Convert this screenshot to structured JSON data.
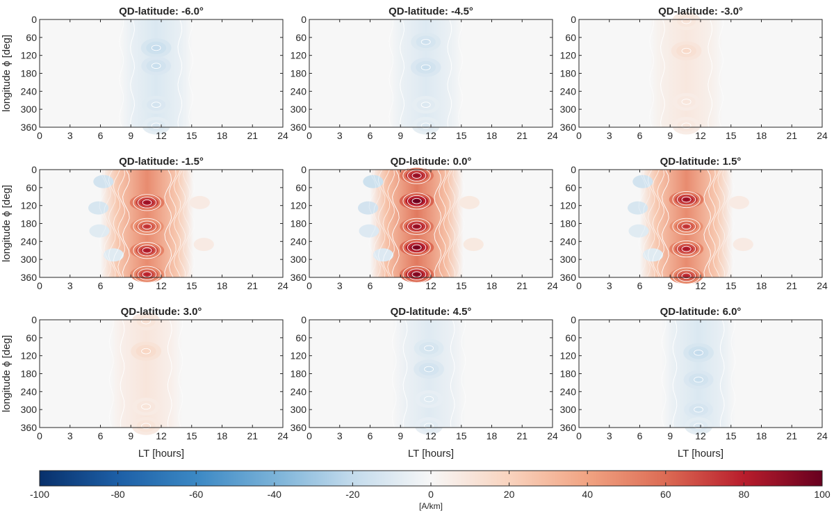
{
  "chart_data": {
    "type": "heatmap",
    "panel_layout": "3x3",
    "x_ticks": [
      "0",
      "3",
      "6",
      "9",
      "12",
      "15",
      "18",
      "21",
      "24"
    ],
    "y_ticks": [
      "0",
      "60",
      "120",
      "180",
      "240",
      "300",
      "360"
    ],
    "xlim": [
      0,
      24
    ],
    "ylim": [
      0,
      360
    ],
    "y_reversed": true,
    "xlabel": "LT [hours]",
    "ylabel": "longitude ϕ [deg]",
    "panels": [
      {
        "title": "QD-latitude: -6.0°",
        "amplitude": -20,
        "centre_lt": 11.5,
        "peaks_deg": [
          95,
          155,
          285,
          355
        ],
        "peak_weights": [
          1.0,
          0.9,
          0.7,
          0.6
        ]
      },
      {
        "title": "QD-latitude: -4.5°",
        "amplitude": -18,
        "centre_lt": 11.5,
        "peaks_deg": [
          75,
          160,
          285,
          355
        ],
        "peak_weights": [
          0.9,
          1.0,
          0.6,
          0.6
        ]
      },
      {
        "title": "QD-latitude: -3.0°",
        "amplitude": 16,
        "centre_lt": 10.6,
        "peaks_deg": [
          5,
          105,
          275,
          355
        ],
        "peak_weights": [
          0.7,
          1.0,
          0.6,
          0.6
        ]
      },
      {
        "title": "QD-latitude: -1.5°",
        "amplitude": 88,
        "centre_lt": 10.6,
        "peaks_deg": [
          110,
          190,
          270,
          350
        ],
        "peak_weights": [
          1.0,
          0.85,
          0.95,
          0.9
        ]
      },
      {
        "title": "QD-latitude: 0.0°",
        "amplitude": 100,
        "centre_lt": 10.6,
        "peaks_deg": [
          20,
          105,
          190,
          260,
          350
        ],
        "peak_weights": [
          0.9,
          1.0,
          0.9,
          0.97,
          0.95
        ]
      },
      {
        "title": "QD-latitude: 1.5°",
        "amplitude": 88,
        "centre_lt": 10.6,
        "peaks_deg": [
          100,
          190,
          265,
          355
        ],
        "peak_weights": [
          1.0,
          0.85,
          0.95,
          0.9
        ]
      },
      {
        "title": "QD-latitude: 3.0°",
        "amplitude": 18,
        "centre_lt": 10.5,
        "peaks_deg": [
          5,
          105,
          290,
          355
        ],
        "peak_weights": [
          0.7,
          1.0,
          0.6,
          0.7
        ]
      },
      {
        "title": "QD-latitude: 4.5°",
        "amplitude": -17,
        "centre_lt": 11.8,
        "peaks_deg": [
          95,
          165,
          265,
          355
        ],
        "peak_weights": [
          0.9,
          1.0,
          0.6,
          0.6
        ]
      },
      {
        "title": "QD-latitude: 6.0°",
        "amplitude": -20,
        "centre_lt": 11.8,
        "peaks_deg": [
          110,
          200,
          300,
          355
        ],
        "peak_weights": [
          1.0,
          0.9,
          0.8,
          0.6
        ]
      }
    ],
    "colorbar": {
      "ticks": [
        "-100",
        "-80",
        "-60",
        "-40",
        "-20",
        "0",
        "20",
        "40",
        "60",
        "80",
        "100"
      ],
      "range": [
        -100,
        100
      ],
      "label": "[A/km]",
      "colormap": "diverging blue-white-red",
      "stops": [
        {
          "v": -100,
          "c": "#08306b"
        },
        {
          "v": -80,
          "c": "#1d5fa6"
        },
        {
          "v": -60,
          "c": "#3b88c4"
        },
        {
          "v": -40,
          "c": "#7ab2d8"
        },
        {
          "v": -20,
          "c": "#c3dbec"
        },
        {
          "v": 0,
          "c": "#f7f7f7"
        },
        {
          "v": 20,
          "c": "#f9d3be"
        },
        {
          "v": 40,
          "c": "#f1a382"
        },
        {
          "v": 60,
          "c": "#dc6b54"
        },
        {
          "v": 80,
          "c": "#b81d2c"
        },
        {
          "v": 100,
          "c": "#67001f"
        }
      ]
    }
  }
}
